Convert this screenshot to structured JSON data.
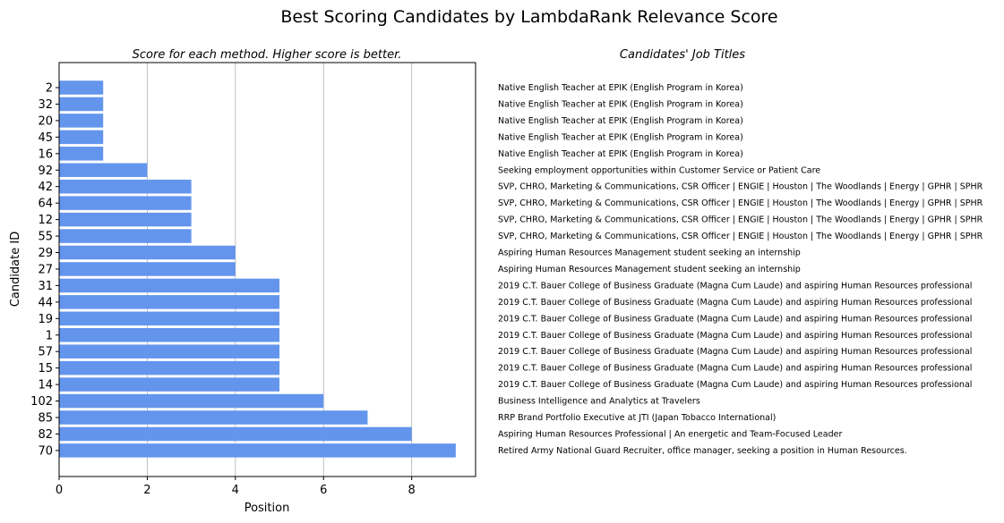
{
  "chart_data": {
    "type": "bar",
    "orientation": "horizontal",
    "title": "Best Scoring Candidates by LambdaRank Relevance Score",
    "subtitle": "Score for each method. Higher score is better.",
    "xlabel": "Position",
    "ylabel": "Candidate ID",
    "xlim": [
      0,
      9.45
    ],
    "xticks": [
      0,
      2,
      4,
      6,
      8
    ],
    "grid": "x",
    "bar_color": "#6495ED",
    "categories": [
      "2",
      "32",
      "20",
      "45",
      "16",
      "92",
      "42",
      "64",
      "12",
      "55",
      "29",
      "27",
      "31",
      "44",
      "19",
      "1",
      "57",
      "15",
      "14",
      "102",
      "85",
      "82",
      "70"
    ],
    "values": [
      1,
      1,
      1,
      1,
      1,
      2,
      3,
      3,
      3,
      3,
      4,
      4,
      5,
      5,
      5,
      5,
      5,
      5,
      5,
      6,
      7,
      8,
      9
    ],
    "side_panel": {
      "title": "Candidates' Job Titles",
      "titles": [
        "Native English Teacher at EPIK (English Program in Korea)",
        "Native English Teacher at EPIK (English Program in Korea)",
        "Native English Teacher at EPIK (English Program in Korea)",
        "Native English Teacher at EPIK (English Program in Korea)",
        "Native English Teacher at EPIK (English Program in Korea)",
        "Seeking employment opportunities within Customer Service or Patient Care",
        "SVP, CHRO, Marketing & Communications, CSR Officer | ENGIE | Houston | The Woodlands | Energy | GPHR | SPHR",
        "SVP, CHRO, Marketing & Communications, CSR Officer | ENGIE | Houston | The Woodlands | Energy | GPHR | SPHR",
        "SVP, CHRO, Marketing & Communications, CSR Officer | ENGIE | Houston | The Woodlands | Energy | GPHR | SPHR",
        "SVP, CHRO, Marketing & Communications, CSR Officer | ENGIE | Houston | The Woodlands | Energy | GPHR | SPHR",
        "Aspiring Human Resources Management student seeking an internship",
        "Aspiring Human Resources Management student seeking an internship",
        "2019 C.T. Bauer College of Business Graduate (Magna Cum Laude) and aspiring Human Resources professional",
        "2019 C.T. Bauer College of Business Graduate (Magna Cum Laude) and aspiring Human Resources professional",
        "2019 C.T. Bauer College of Business Graduate (Magna Cum Laude) and aspiring Human Resources professional",
        "2019 C.T. Bauer College of Business Graduate (Magna Cum Laude) and aspiring Human Resources professional",
        "2019 C.T. Bauer College of Business Graduate (Magna Cum Laude) and aspiring Human Resources professional",
        "2019 C.T. Bauer College of Business Graduate (Magna Cum Laude) and aspiring Human Resources professional",
        "2019 C.T. Bauer College of Business Graduate (Magna Cum Laude) and aspiring Human Resources professional",
        "Business Intelligence and Analytics at Travelers",
        "RRP Brand Portfolio Executive at JTI (Japan Tobacco International)",
        "Aspiring Human Resources Professional | An energetic and Team-Focused Leader",
        "Retired Army National Guard Recruiter, office manager,  seeking a position in Human Resources."
      ]
    }
  }
}
